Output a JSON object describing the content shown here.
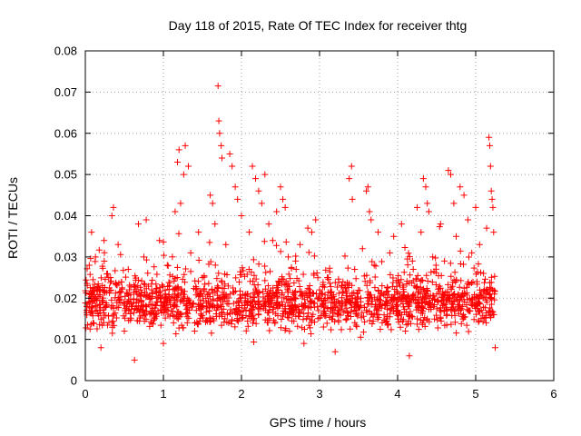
{
  "chart_data": {
    "type": "scatter",
    "title": "Day 118 of 2015, Rate Of TEC Index for receiver thtg",
    "xlabel": "GPS time / hours",
    "ylabel": "ROTI / TECUs",
    "xlim": [
      0,
      6
    ],
    "ylim": [
      0,
      0.08
    ],
    "x_ticks": [
      0,
      1,
      2,
      3,
      4,
      5,
      6
    ],
    "x_tick_labels": [
      "0",
      "1",
      "2",
      "3",
      "4",
      "5",
      "6"
    ],
    "y_ticks": [
      0,
      0.01,
      0.02,
      0.03,
      0.04,
      0.05,
      0.06,
      0.07,
      0.08
    ],
    "y_tick_labels": [
      "0",
      "0.01",
      "0.02",
      "0.03",
      "0.04",
      "0.05",
      "0.06",
      "0.07",
      "0.08"
    ],
    "grid": true,
    "marker": "+",
    "marker_color": "#ff0000",
    "data_x_range": [
      0,
      5.25
    ],
    "series": [
      {
        "name": "ROTI",
        "points": [
          [
            0.02,
            0.018
          ],
          [
            0.05,
            0.028
          ],
          [
            0.08,
            0.036
          ],
          [
            0.1,
            0.014
          ],
          [
            0.13,
            0.03
          ],
          [
            0.16,
            0.022
          ],
          [
            0.2,
            0.008
          ],
          [
            0.24,
            0.034
          ],
          [
            0.3,
            0.025
          ],
          [
            0.34,
            0.04
          ],
          [
            0.36,
            0.042
          ],
          [
            0.42,
            0.033
          ],
          [
            0.5,
            0.012
          ],
          [
            0.55,
            0.027
          ],
          [
            0.6,
            0.018
          ],
          [
            0.63,
            0.005
          ],
          [
            0.68,
            0.038
          ],
          [
            0.75,
            0.03
          ],
          [
            0.78,
            0.039
          ],
          [
            0.85,
            0.022
          ],
          [
            0.9,
            0.016
          ],
          [
            0.95,
            0.034
          ],
          [
            1.0,
            0.009
          ],
          [
            1.05,
            0.028
          ],
          [
            1.1,
            0.02
          ],
          [
            1.15,
            0.041
          ],
          [
            1.18,
            0.053
          ],
          [
            1.2,
            0.056
          ],
          [
            1.22,
            0.043
          ],
          [
            1.26,
            0.05
          ],
          [
            1.28,
            0.057
          ],
          [
            1.32,
            0.052
          ],
          [
            1.35,
            0.031
          ],
          [
            1.4,
            0.012
          ],
          [
            1.45,
            0.036
          ],
          [
            1.5,
            0.025
          ],
          [
            1.55,
            0.018
          ],
          [
            1.6,
            0.045
          ],
          [
            1.63,
            0.043
          ],
          [
            1.66,
            0.038
          ],
          [
            1.7,
            0.0715
          ],
          [
            1.71,
            0.063
          ],
          [
            1.72,
            0.06
          ],
          [
            1.74,
            0.057
          ],
          [
            1.75,
            0.054
          ],
          [
            1.8,
            0.033
          ],
          [
            1.85,
            0.055
          ],
          [
            1.88,
            0.052
          ],
          [
            1.92,
            0.047
          ],
          [
            1.95,
            0.044
          ],
          [
            2.0,
            0.04
          ],
          [
            2.05,
            0.02
          ],
          [
            2.1,
            0.036
          ],
          [
            2.14,
            0.052
          ],
          [
            2.18,
            0.049
          ],
          [
            2.22,
            0.046
          ],
          [
            2.26,
            0.043
          ],
          [
            2.3,
            0.05
          ],
          [
            2.35,
            0.038
          ],
          [
            2.4,
            0.034
          ],
          [
            2.45,
            0.041
          ],
          [
            2.5,
            0.047
          ],
          [
            2.53,
            0.044
          ],
          [
            2.56,
            0.042
          ],
          [
            2.6,
            0.03
          ],
          [
            2.65,
            0.016
          ],
          [
            2.7,
            0.027
          ],
          [
            2.75,
            0.033
          ],
          [
            2.8,
            0.009
          ],
          [
            2.85,
            0.037
          ],
          [
            2.9,
            0.036
          ],
          [
            2.95,
            0.039
          ],
          [
            3.0,
            0.022
          ],
          [
            3.05,
            0.013
          ],
          [
            3.1,
            0.025
          ],
          [
            3.15,
            0.019
          ],
          [
            3.2,
            0.007
          ],
          [
            3.25,
            0.017
          ],
          [
            3.3,
            0.024
          ],
          [
            3.35,
            0.015
          ],
          [
            3.38,
            0.049
          ],
          [
            3.41,
            0.052
          ],
          [
            3.42,
            0.044
          ],
          [
            3.45,
            0.027
          ],
          [
            3.5,
            0.018
          ],
          [
            3.55,
            0.032
          ],
          [
            3.6,
            0.046
          ],
          [
            3.62,
            0.047
          ],
          [
            3.64,
            0.041
          ],
          [
            3.66,
            0.039
          ],
          [
            3.7,
            0.028
          ],
          [
            3.75,
            0.036
          ],
          [
            3.8,
            0.023
          ],
          [
            3.85,
            0.015
          ],
          [
            3.9,
            0.031
          ],
          [
            3.95,
            0.035
          ],
          [
            4.0,
            0.02
          ],
          [
            4.05,
            0.038
          ],
          [
            4.1,
            0.012
          ],
          [
            4.15,
            0.006
          ],
          [
            4.2,
            0.027
          ],
          [
            4.25,
            0.042
          ],
          [
            4.3,
            0.036
          ],
          [
            4.33,
            0.049
          ],
          [
            4.36,
            0.047
          ],
          [
            4.38,
            0.043
          ],
          [
            4.4,
            0.041
          ],
          [
            4.45,
            0.03
          ],
          [
            4.5,
            0.021
          ],
          [
            4.55,
            0.038
          ],
          [
            4.6,
            0.029
          ],
          [
            4.65,
            0.051
          ],
          [
            4.68,
            0.05
          ],
          [
            4.72,
            0.043
          ],
          [
            4.75,
            0.035
          ],
          [
            4.8,
            0.047
          ],
          [
            4.85,
            0.045
          ],
          [
            4.9,
            0.039
          ],
          [
            4.95,
            0.031
          ],
          [
            5.0,
            0.042
          ],
          [
            5.05,
            0.033
          ],
          [
            5.1,
            0.026
          ],
          [
            5.14,
            0.037
          ],
          [
            5.17,
            0.059
          ],
          [
            5.18,
            0.057
          ],
          [
            5.19,
            0.052
          ],
          [
            5.2,
            0.046
          ],
          [
            5.21,
            0.044
          ],
          [
            5.22,
            0.042
          ],
          [
            5.23,
            0.036
          ],
          [
            5.24,
            0.021
          ],
          [
            5.25,
            0.008
          ]
        ]
      }
    ]
  }
}
